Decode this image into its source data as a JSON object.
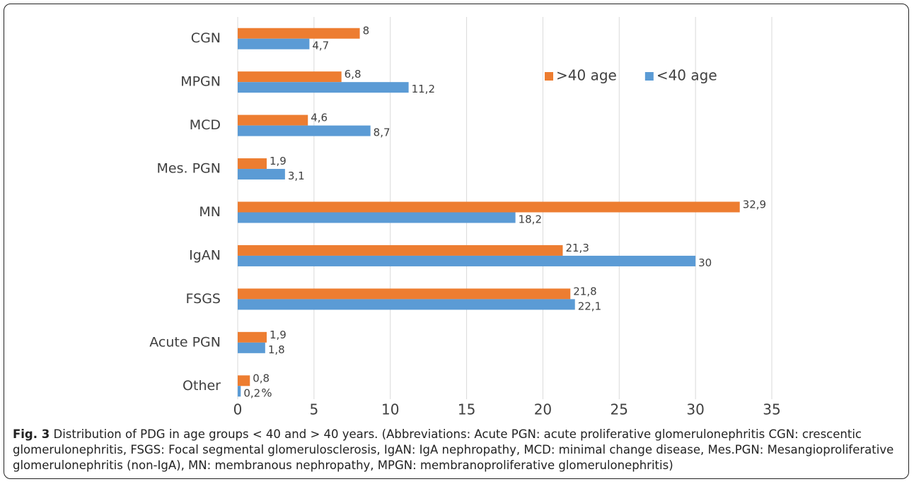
{
  "chart_data": {
    "type": "barh",
    "categories": [
      "CGN",
      "MPGN",
      "MCD",
      "Mes. PGN",
      "MN",
      "IgAN",
      "FSGS",
      "Acute PGN",
      "Other"
    ],
    "series": [
      {
        "name": ">40 age",
        "color": "#ed7d31",
        "values": [
          8,
          6.8,
          4.6,
          1.9,
          32.9,
          21.3,
          21.8,
          1.9,
          0.8
        ],
        "value_labels": [
          "8",
          "6,8",
          "4,6",
          "1,9",
          "32,9",
          "21,3",
          "21,8",
          "1,9",
          "0,8"
        ]
      },
      {
        "name": "<40 age",
        "color": "#5b9bd5",
        "values": [
          4.7,
          11.2,
          8.7,
          3.1,
          18.2,
          30,
          22.1,
          1.8,
          0.2
        ],
        "value_labels": [
          "4,7",
          "11,2",
          "8,7",
          "3,1",
          "18,2",
          "30",
          "22,1",
          "1,8",
          "0,2"
        ]
      }
    ],
    "xlabel": "%",
    "xlim": [
      0,
      35
    ],
    "xticks": [
      0,
      5,
      10,
      15,
      20,
      25,
      30,
      35
    ],
    "grid": true,
    "legend": "top-right"
  },
  "caption_label": "Fig. 3",
  "caption": "Distribution of PDG in age groups < 40 and > 40 years. (Abbreviations: Acute PGN: acute proliferative glomerulonephritis CGN: crescentic glomerulonephritis, FSGS: Focal segmental glomerulosclerosis, IgAN: IgA nephropathy, MCD: minimal change disease, Mes.PGN: Mesangioproliferative glomerulonephritis (non-IgA), MN: membranous nephropathy, MPGN: membranoproliferative glomerulonephritis)"
}
